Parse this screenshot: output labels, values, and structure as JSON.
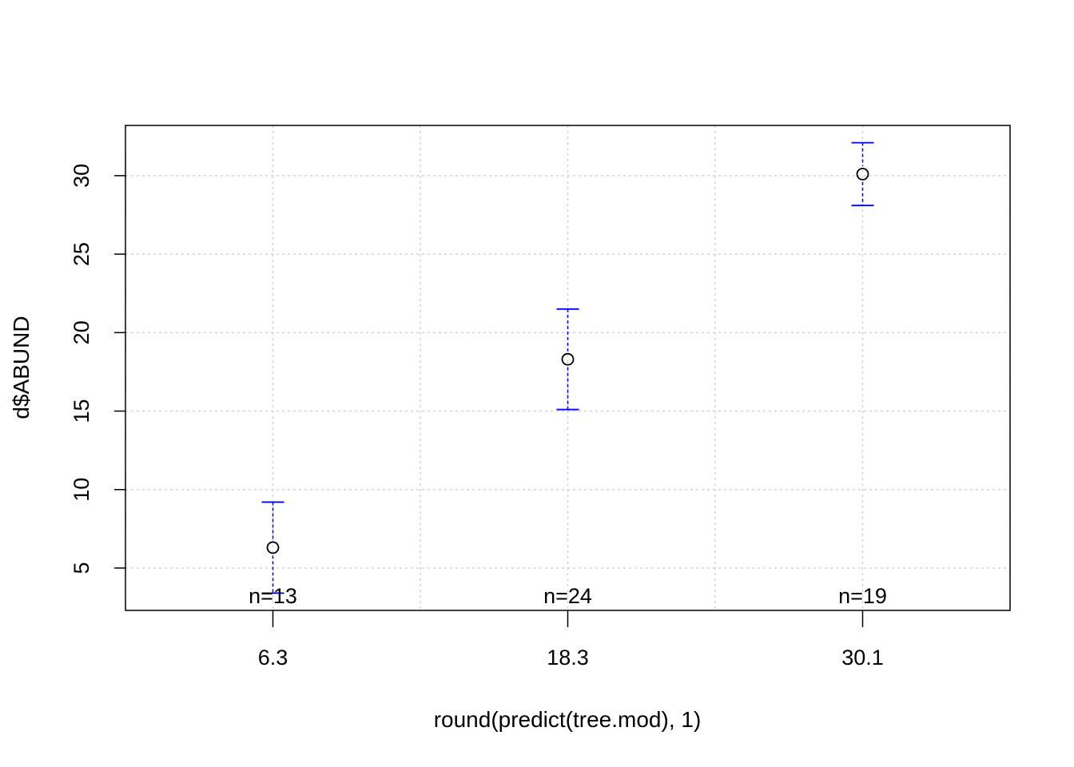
{
  "chart_data": {
    "type": "scatter",
    "xlabel": "round(predict(tree.mod), 1)",
    "ylabel": "d$ABUND",
    "categories": [
      "6.3",
      "18.3",
      "30.1"
    ],
    "series": [
      {
        "means": [
          6.3,
          18.3,
          30.1
        ],
        "ci_lower": [
          3.4,
          15.1,
          28.1
        ],
        "ci_upper": [
          9.2,
          21.5,
          32.1
        ],
        "n_labels": [
          "n=13",
          "n=24",
          "n=19"
        ]
      }
    ],
    "xlim": [
      0.5,
      3.5
    ],
    "ylim": [
      2.3,
      33.2
    ],
    "yticks": [
      5,
      10,
      15,
      20,
      25,
      30
    ],
    "grid": true,
    "colors": {
      "ci": "#0000ff",
      "point": "#000000",
      "grid": "#d3d3d3",
      "axis": "#000000"
    }
  }
}
